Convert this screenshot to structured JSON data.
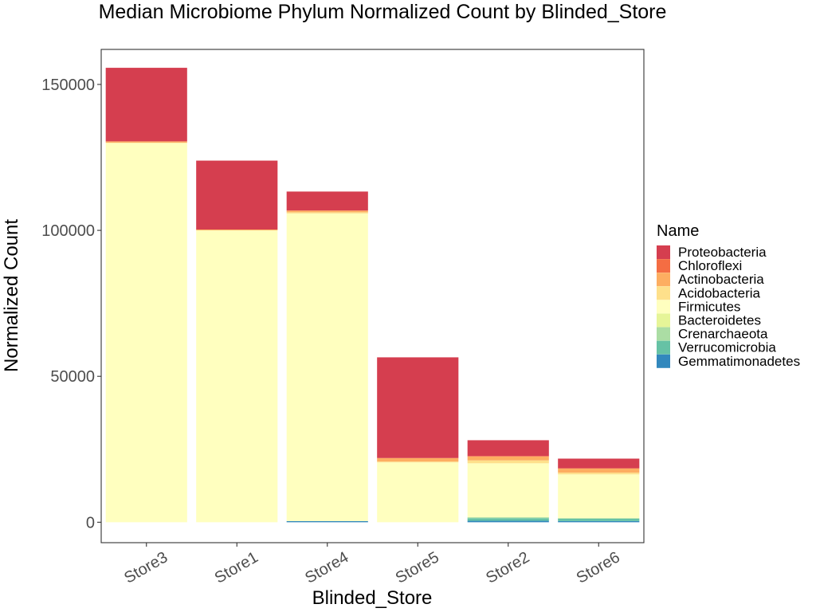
{
  "chart_data": {
    "type": "bar",
    "stacked": true,
    "title": "Median Microbiome Phylum Normalized Count by Blinded_Store",
    "xlabel": "Blinded_Store",
    "ylabel": "Normalized Count",
    "ylim": [
      -7000,
      162000
    ],
    "yticks": [
      0,
      50000,
      100000,
      150000
    ],
    "ytick_labels": [
      "0",
      "50000",
      "100000",
      "150000"
    ],
    "grid": false,
    "legend_title": "Name",
    "legend_position": "right",
    "categories": [
      "Store3",
      "Store1",
      "Store4",
      "Store5",
      "Store2",
      "Store6"
    ],
    "series": [
      {
        "name": "Gemmatimonadetes",
        "color": "#3288BD",
        "values": [
          0,
          0,
          400,
          0,
          500,
          400
        ]
      },
      {
        "name": "Verrucomicrobia",
        "color": "#66C2A5",
        "values": [
          0,
          0,
          0,
          0,
          900,
          800
        ]
      },
      {
        "name": "Crenarchaeota",
        "color": "#ABDDA4",
        "values": [
          0,
          0,
          0,
          0,
          300,
          200
        ]
      },
      {
        "name": "Bacteroidetes",
        "color": "#E6F598",
        "values": [
          0,
          0,
          0,
          0,
          100,
          100
        ]
      },
      {
        "name": "Firmicutes",
        "color": "#FFFFBF",
        "values": [
          130000,
          100000,
          105400,
          20500,
          18400,
          14900
        ]
      },
      {
        "name": "Acidobacteria",
        "color": "#FEE08B",
        "values": [
          0,
          0,
          400,
          300,
          1000,
          600
        ]
      },
      {
        "name": "Actinobacteria",
        "color": "#FDAE61",
        "values": [
          500,
          300,
          600,
          1200,
          1300,
          1400
        ]
      },
      {
        "name": "Chloroflexi",
        "color": "#F46D43",
        "values": [
          0,
          0,
          0,
          0,
          200,
          100
        ]
      },
      {
        "name": "Proteobacteria",
        "color": "#D53E4F",
        "values": [
          25200,
          23600,
          6500,
          34500,
          5400,
          3300
        ]
      }
    ],
    "legend_order": [
      "Proteobacteria",
      "Chloroflexi",
      "Actinobacteria",
      "Acidobacteria",
      "Firmicutes",
      "Bacteroidetes",
      "Crenarchaeota",
      "Verrucomicrobia",
      "Gemmatimonadetes"
    ]
  }
}
